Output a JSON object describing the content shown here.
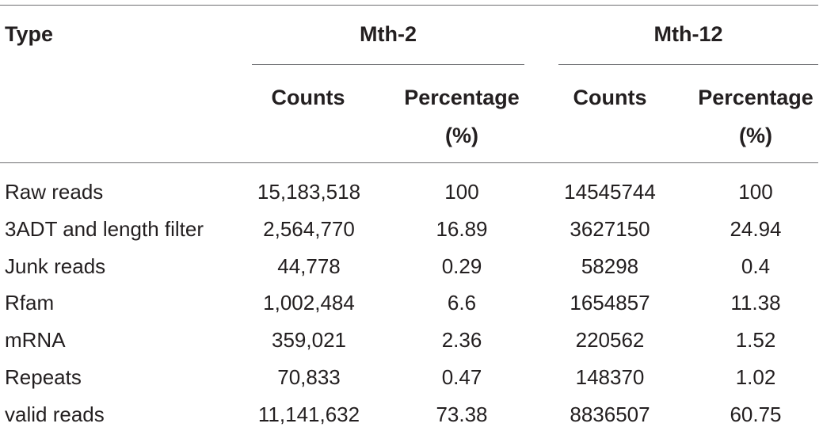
{
  "table": {
    "header": {
      "type_label": "Type",
      "groups": [
        "Mth-2",
        "Mth-12"
      ],
      "sub_columns": [
        {
          "line1": "Counts",
          "line2": ""
        },
        {
          "line1": "Percentage",
          "line2": "(%)"
        },
        {
          "line1": "Counts",
          "line2": ""
        },
        {
          "line1": "Percentage",
          "line2": "(%)"
        }
      ]
    },
    "rows": [
      {
        "type": "Raw reads",
        "mth2_counts": "15,183,518",
        "mth2_pct": "100",
        "mth12_counts": "14545744",
        "mth12_pct": "100"
      },
      {
        "type": "3ADT and length filter",
        "mth2_counts": "2,564,770",
        "mth2_pct": "16.89",
        "mth12_counts": "3627150",
        "mth12_pct": "24.94"
      },
      {
        "type": "Junk reads",
        "mth2_counts": "44,778",
        "mth2_pct": "0.29",
        "mth12_counts": "58298",
        "mth12_pct": "0.4"
      },
      {
        "type": "Rfam",
        "mth2_counts": "1,002,484",
        "mth2_pct": "6.6",
        "mth12_counts": "1654857",
        "mth12_pct": "11.38"
      },
      {
        "type": "mRNA",
        "mth2_counts": "359,021",
        "mth2_pct": "2.36",
        "mth12_counts": "220562",
        "mth12_pct": "1.52"
      },
      {
        "type": "Repeats",
        "mth2_counts": "70,833",
        "mth2_pct": "0.47",
        "mth12_counts": "148370",
        "mth12_pct": "1.02"
      },
      {
        "type": "valid reads",
        "mth2_counts": "11,141,632",
        "mth2_pct": "73.38",
        "mth12_counts": "8836507",
        "mth12_pct": "60.75"
      }
    ]
  }
}
